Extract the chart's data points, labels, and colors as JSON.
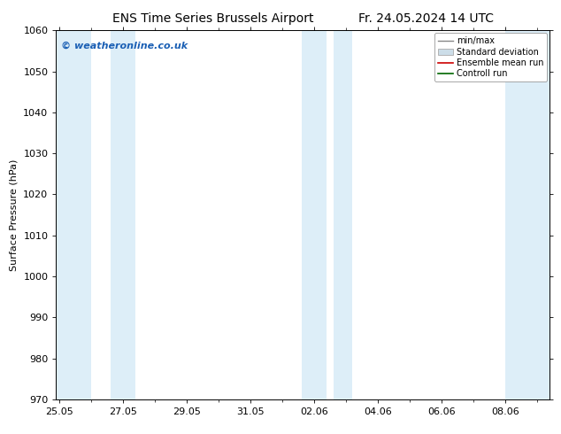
{
  "title_left": "ENS Time Series Brussels Airport",
  "title_right": "Fr. 24.05.2024 14 UTC",
  "ylabel": "Surface Pressure (hPa)",
  "ylim": [
    970,
    1060
  ],
  "yticks": [
    970,
    980,
    990,
    1000,
    1010,
    1020,
    1030,
    1040,
    1050,
    1060
  ],
  "xtick_labels": [
    "25.05",
    "27.05",
    "29.05",
    "31.05",
    "02.06",
    "04.06",
    "06.06",
    "08.06"
  ],
  "xtick_positions": [
    0,
    2,
    4,
    6,
    8,
    10,
    12,
    14
  ],
  "xlim": [
    -0.1,
    15.4
  ],
  "shaded_bands": [
    {
      "x_start": -0.1,
      "x_end": 1.0,
      "color": "#ddeef8"
    },
    {
      "x_start": 1.6,
      "x_end": 2.4,
      "color": "#ddeef8"
    },
    {
      "x_start": 7.6,
      "x_end": 8.4,
      "color": "#ddeef8"
    },
    {
      "x_start": 8.6,
      "x_end": 9.2,
      "color": "#ddeef8"
    },
    {
      "x_start": 14.0,
      "x_end": 15.4,
      "color": "#ddeef8"
    }
  ],
  "watermark_text": "© weatheronline.co.uk",
  "watermark_color": "#1a5fb4",
  "legend_labels": [
    "min/max",
    "Standard deviation",
    "Ensemble mean run",
    "Controll run"
  ],
  "background_color": "#ffffff",
  "plot_bg_color": "#ffffff",
  "title_fontsize": 10,
  "tick_fontsize": 8,
  "label_fontsize": 8
}
